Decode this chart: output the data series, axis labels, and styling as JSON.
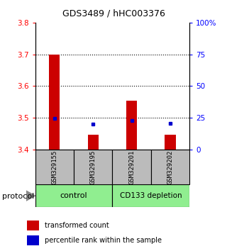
{
  "title": "GDS3489 / hHC003376",
  "samples": [
    "GSM329155",
    "GSM329195",
    "GSM329201",
    "GSM329202"
  ],
  "red_values": [
    3.7,
    3.447,
    3.553,
    3.447
  ],
  "blue_values": [
    3.497,
    3.48,
    3.49,
    3.483
  ],
  "ylim_left": [
    3.4,
    3.8
  ],
  "ylim_right": [
    0,
    100
  ],
  "yticks_left": [
    3.4,
    3.5,
    3.6,
    3.7,
    3.8
  ],
  "yticks_right": [
    0,
    25,
    50,
    75,
    100
  ],
  "ytick_labels_right": [
    "0",
    "25",
    "50",
    "75",
    "100%"
  ],
  "grid_values": [
    3.5,
    3.6,
    3.7
  ],
  "red_color": "#CC0000",
  "blue_color": "#0000CC",
  "bg_color": "#BBBBBB",
  "green_color": "#90EE90",
  "protocol_label": "protocol",
  "legend_red": "transformed count",
  "legend_blue": "percentile rank within the sample",
  "bar_width": 0.28
}
